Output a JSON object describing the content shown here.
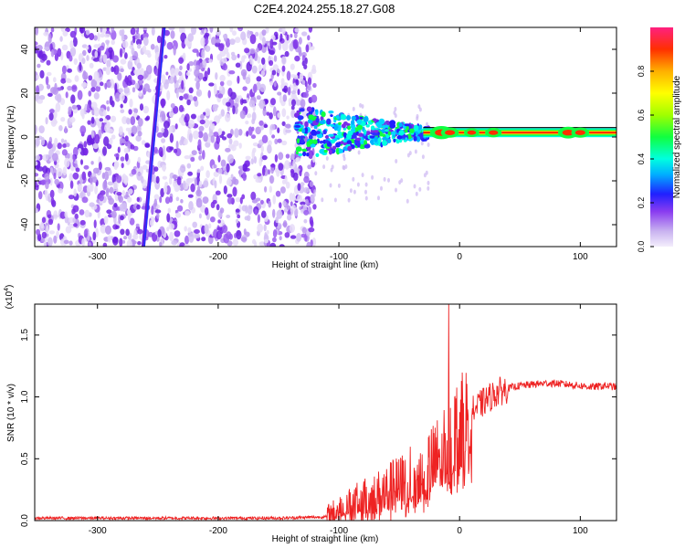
{
  "title": "C2E4.2024.255.18.27.G08",
  "chart_data": [
    {
      "type": "heatmap",
      "xlabel": "Height of straight line (km)",
      "ylabel": "Frequency (Hz)",
      "xlim": [
        -352,
        130
      ],
      "ylim": [
        -50,
        50
      ],
      "xticks": [
        -300,
        -200,
        -100,
        0,
        100
      ],
      "yticks": [
        -40,
        -20,
        0,
        20,
        40
      ],
      "colorbar": {
        "label": "Normalized spectral amplitude",
        "range": [
          0.0,
          1.0
        ],
        "ticks": [
          "0.0",
          "0.2",
          "0.4",
          "0.6",
          "0.8"
        ]
      },
      "features": {
        "noise_region_x": [
          -352,
          -120
        ],
        "signal_line_freq_hz": 2,
        "signal_onset_x_km": -130,
        "slanted_streak": {
          "x_start": -262,
          "x_end": -245
        }
      }
    },
    {
      "type": "line",
      "xlabel": "Height of straight line (km)",
      "ylabel": "SNR (10 * v/v)",
      "yscale_label": "(x10",
      "yscale_exp": "4",
      "xlim": [
        -352,
        130
      ],
      "ylim": [
        0,
        1.75
      ],
      "xticks": [
        -300,
        -200,
        -100,
        0,
        100
      ],
      "yticks": [
        "0.0",
        "0.5",
        "1.0",
        "1.5"
      ],
      "series": [
        {
          "color": "#ee2222",
          "x": [
            -352,
            -300,
            -250,
            -200,
            -150,
            -110,
            -100,
            -90,
            -80,
            -70,
            -60,
            -50,
            -40,
            -30,
            -20,
            -15,
            -10,
            -5,
            0,
            5,
            10,
            20,
            30,
            40,
            50,
            60,
            70,
            80,
            90,
            100,
            110,
            120,
            130
          ],
          "y": [
            0.02,
            0.02,
            0.02,
            0.02,
            0.02,
            0.03,
            0.08,
            0.12,
            0.15,
            0.18,
            0.22,
            0.26,
            0.32,
            0.38,
            0.45,
            0.55,
            0.62,
            0.68,
            0.75,
            0.82,
            0.88,
            0.96,
            1.03,
            1.07,
            1.09,
            1.1,
            1.11,
            1.11,
            1.1,
            1.09,
            1.08,
            1.09,
            1.08
          ]
        }
      ],
      "annotations": {
        "spike": {
          "x": -9,
          "y": 1.75
        }
      }
    }
  ]
}
